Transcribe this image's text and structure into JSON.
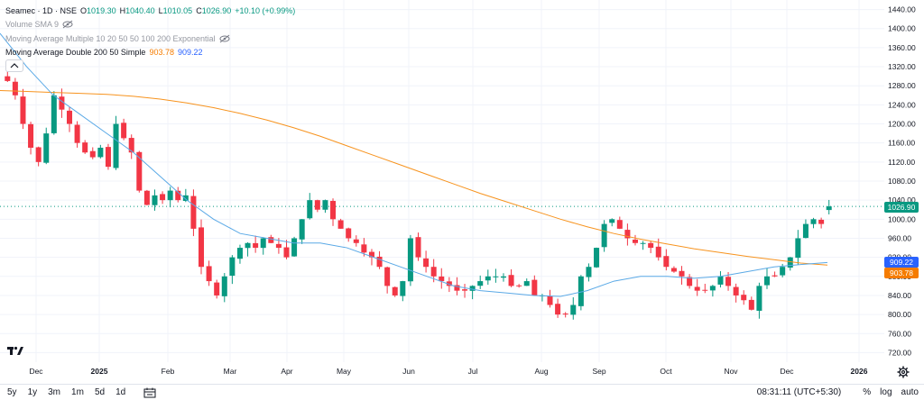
{
  "legend": {
    "symbol_title": "Seamec · 1D · NSE",
    "open_label": "O",
    "open": "1019.30",
    "high_label": "H",
    "high": "1040.40",
    "low_label": "L",
    "low": "1010.05",
    "close_label": "C",
    "close": "1026.90",
    "change": "+10.10 (+0.99%)",
    "volume_sma": "Volume SMA 9",
    "ma_multiple": "Moving Average Multiple 10 20 50 50 100 200 Exponential",
    "ma_double": "Moving Average Double 200 50 Simple",
    "ma_double_v1": "903.78",
    "ma_double_v2": "909.22"
  },
  "colors": {
    "up": "#089981",
    "down": "#f23645",
    "ma200": "#f7931e",
    "ma50": "#5aa9e6",
    "price_tag": "#089981",
    "ma50_tag": "#2962ff",
    "ma200_tag": "#f57c00"
  },
  "icons": {
    "eye": "eye-slash-icon",
    "collapse": "chevron-up-icon",
    "logo": "tradingview-logo",
    "calendar": "calendar-range-icon",
    "settings": "gear-icon"
  },
  "price_tags": {
    "last": "1026.90",
    "ma50": "909.22",
    "ma200": "903.78"
  },
  "bottom_bar": {
    "ranges": [
      "5y",
      "1y",
      "3m",
      "1m",
      "5d",
      "1d"
    ],
    "clock": "08:31:11 (UTC+5:30)",
    "percent": "%",
    "log": "log",
    "auto": "auto"
  },
  "chart_data": {
    "type": "candlestick",
    "symbol": "Seamec",
    "interval": "1D",
    "exchange": "NSE",
    "ylim": [
      700,
      1460
    ],
    "y_ticks": [
      720,
      760,
      800,
      840,
      880,
      920,
      960,
      1000,
      1040,
      1080,
      1120,
      1160,
      1200,
      1240,
      1280,
      1320,
      1360,
      1400,
      1440
    ],
    "x_ticks": [
      "Dec",
      "2025",
      "Feb",
      "Mar",
      "Apr",
      "May",
      "Jun",
      "Jul",
      "Aug",
      "Sep",
      "Oct",
      "Nov",
      "Dec",
      "2026"
    ],
    "grid": true,
    "series": [
      {
        "name": "Close (approx.)",
        "values": [
          1290,
          1260,
          1200,
          1150,
          1120,
          1180,
          1260,
          1230,
          1200,
          1160,
          1140,
          1130,
          1150,
          1110,
          1200,
          1170,
          1140,
          1060,
          1030,
          1050,
          1040,
          1060,
          1040,
          1050,
          980,
          900,
          870,
          840,
          880,
          920,
          940,
          950,
          940,
          960,
          950,
          940,
          920,
          960,
          1000,
          1040,
          1020,
          1040,
          1000,
          980,
          960,
          950,
          930,
          920,
          900,
          860,
          840,
          870,
          960,
          920,
          900,
          880,
          870,
          860,
          850,
          850,
          860,
          870,
          880,
          880,
          880,
          860,
          860,
          870,
          840,
          840,
          820,
          800,
          800,
          820,
          880,
          900,
          940,
          990,
          1000,
          980,
          960,
          950,
          950,
          940,
          920,
          900,
          890,
          880,
          860,
          850,
          850,
          860,
          880,
          860,
          840,
          830,
          810,
          860,
          880,
          880,
          900,
          920,
          960,
          990,
          1000,
          990,
          1026.9
        ]
      },
      {
        "name": "MA 200",
        "values": [
          1270,
          1268,
          1266,
          1264,
          1262,
          1258,
          1252,
          1244,
          1234,
          1222,
          1208,
          1192,
          1174,
          1154,
          1134,
          1114,
          1094,
          1074,
          1054,
          1036,
          1018,
          1000,
          984,
          970,
          958,
          948,
          938,
          930,
          922,
          915,
          908,
          903.78
        ]
      },
      {
        "name": "MA 50",
        "values": [
          1390,
          1320,
          1260,
          1220,
          1180,
          1140,
          1090,
          1040,
          1000,
          970,
          960,
          950,
          950,
          940,
          920,
          900,
          880,
          860,
          850,
          845,
          840,
          838,
          850,
          870,
          880,
          880,
          876,
          880,
          890,
          900,
          905,
          909.22
        ]
      }
    ],
    "last": {
      "open": 1019.3,
      "high": 1040.4,
      "low": 1010.05,
      "close": 1026.9,
      "change": 10.1,
      "change_pct": 0.99
    }
  }
}
